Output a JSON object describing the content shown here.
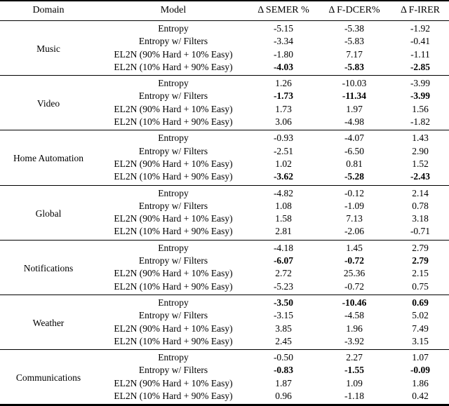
{
  "table": {
    "headers": {
      "domain": "Domain",
      "model": "Model",
      "semer": "Δ SEMER %",
      "fdcer": "Δ F-DCER%",
      "firer": "Δ F-IRER"
    },
    "groups": [
      {
        "domain": "Music",
        "rows": [
          {
            "model": "Entropy",
            "semer": "-5.15",
            "fdcer": "-5.38",
            "firer": "-1.92",
            "bold": false
          },
          {
            "model": "Entropy w/ Filters",
            "semer": "-3.34",
            "fdcer": "-5.83",
            "firer": "-0.41",
            "bold": false
          },
          {
            "model": "EL2N (90% Hard + 10% Easy)",
            "semer": "-1.80",
            "fdcer": "7.17",
            "firer": "-1.11",
            "bold": false
          },
          {
            "model": "EL2N (10% Hard + 90% Easy)",
            "semer": "-4.03",
            "fdcer": "-5.83",
            "firer": "-2.85",
            "bold": true
          }
        ]
      },
      {
        "domain": "Video",
        "rows": [
          {
            "model": "Entropy",
            "semer": "1.26",
            "fdcer": "-10.03",
            "firer": "-3.99",
            "bold": false
          },
          {
            "model": "Entropy w/ Filters",
            "semer": "-1.73",
            "fdcer": "-11.34",
            "firer": "-3.99",
            "bold": true
          },
          {
            "model": "EL2N (90% Hard + 10% Easy)",
            "semer": "1.73",
            "fdcer": "1.97",
            "firer": "1.56",
            "bold": false
          },
          {
            "model": "EL2N (10% Hard + 90% Easy)",
            "semer": "3.06",
            "fdcer": "-4.98",
            "firer": "-1.82",
            "bold": false
          }
        ]
      },
      {
        "domain": "Home Automation",
        "rows": [
          {
            "model": "Entropy",
            "semer": "-0.93",
            "fdcer": "-4.07",
            "firer": "1.43",
            "bold": false
          },
          {
            "model": "Entropy w/ Filters",
            "semer": "-2.51",
            "fdcer": "-6.50",
            "firer": "2.90",
            "bold": false
          },
          {
            "model": "EL2N (90% Hard + 10% Easy)",
            "semer": "1.02",
            "fdcer": "0.81",
            "firer": "1.52",
            "bold": false
          },
          {
            "model": "EL2N (10% Hard + 90% Easy)",
            "semer": "-3.62",
            "fdcer": "-5.28",
            "firer": "-2.43",
            "bold": true
          }
        ]
      },
      {
        "domain": "Global",
        "rows": [
          {
            "model": "Entropy",
            "semer": "-4.82",
            "fdcer": "-0.12",
            "firer": "2.14",
            "bold": false
          },
          {
            "model": "Entropy w/ Filters",
            "semer": "1.08",
            "fdcer": "-1.09",
            "firer": "0.78",
            "bold": false
          },
          {
            "model": "EL2N (90% Hard + 10% Easy)",
            "semer": "1.58",
            "fdcer": "7.13",
            "firer": "3.18",
            "bold": false
          },
          {
            "model": "EL2N (10% Hard + 90% Easy)",
            "semer": "2.81",
            "fdcer": "-2.06",
            "firer": "-0.71",
            "bold": false
          }
        ]
      },
      {
        "domain": "Notifications",
        "rows": [
          {
            "model": "Entropy",
            "semer": "-4.18",
            "fdcer": "1.45",
            "firer": "2.79",
            "bold": false
          },
          {
            "model": "Entropy w/ Filters",
            "semer": "-6.07",
            "fdcer": "-0.72",
            "firer": "2.79",
            "bold": true
          },
          {
            "model": "EL2N (90% Hard + 10% Easy)",
            "semer": "2.72",
            "fdcer": "25.36",
            "firer": "2.15",
            "bold": false
          },
          {
            "model": "EL2N (10% Hard + 90% Easy)",
            "semer": "-5.23",
            "fdcer": "-0.72",
            "firer": "0.75",
            "bold": false
          }
        ]
      },
      {
        "domain": "Weather",
        "rows": [
          {
            "model": "Entropy",
            "semer": "-3.50",
            "fdcer": "-10.46",
            "firer": "0.69",
            "bold": true
          },
          {
            "model": "Entropy w/ Filters",
            "semer": "-3.15",
            "fdcer": "-4.58",
            "firer": "5.02",
            "bold": false
          },
          {
            "model": "EL2N (90% Hard + 10% Easy)",
            "semer": "3.85",
            "fdcer": "1.96",
            "firer": "7.49",
            "bold": false
          },
          {
            "model": "EL2N (10% Hard + 90% Easy)",
            "semer": "2.45",
            "fdcer": "-3.92",
            "firer": "3.15",
            "bold": false
          }
        ]
      },
      {
        "domain": "Communications",
        "rows": [
          {
            "model": "Entropy",
            "semer": "-0.50",
            "fdcer": "2.27",
            "firer": "1.07",
            "bold": false
          },
          {
            "model": "Entropy w/ Filters",
            "semer": "-0.83",
            "fdcer": "-1.55",
            "firer": "-0.09",
            "bold": true
          },
          {
            "model": "EL2N (90% Hard + 10% Easy)",
            "semer": "1.87",
            "fdcer": "1.09",
            "firer": "1.86",
            "bold": false
          },
          {
            "model": "EL2N (10% Hard + 90% Easy)",
            "semer": "0.96",
            "fdcer": "-1.18",
            "firer": "0.42",
            "bold": false
          }
        ]
      }
    ]
  }
}
